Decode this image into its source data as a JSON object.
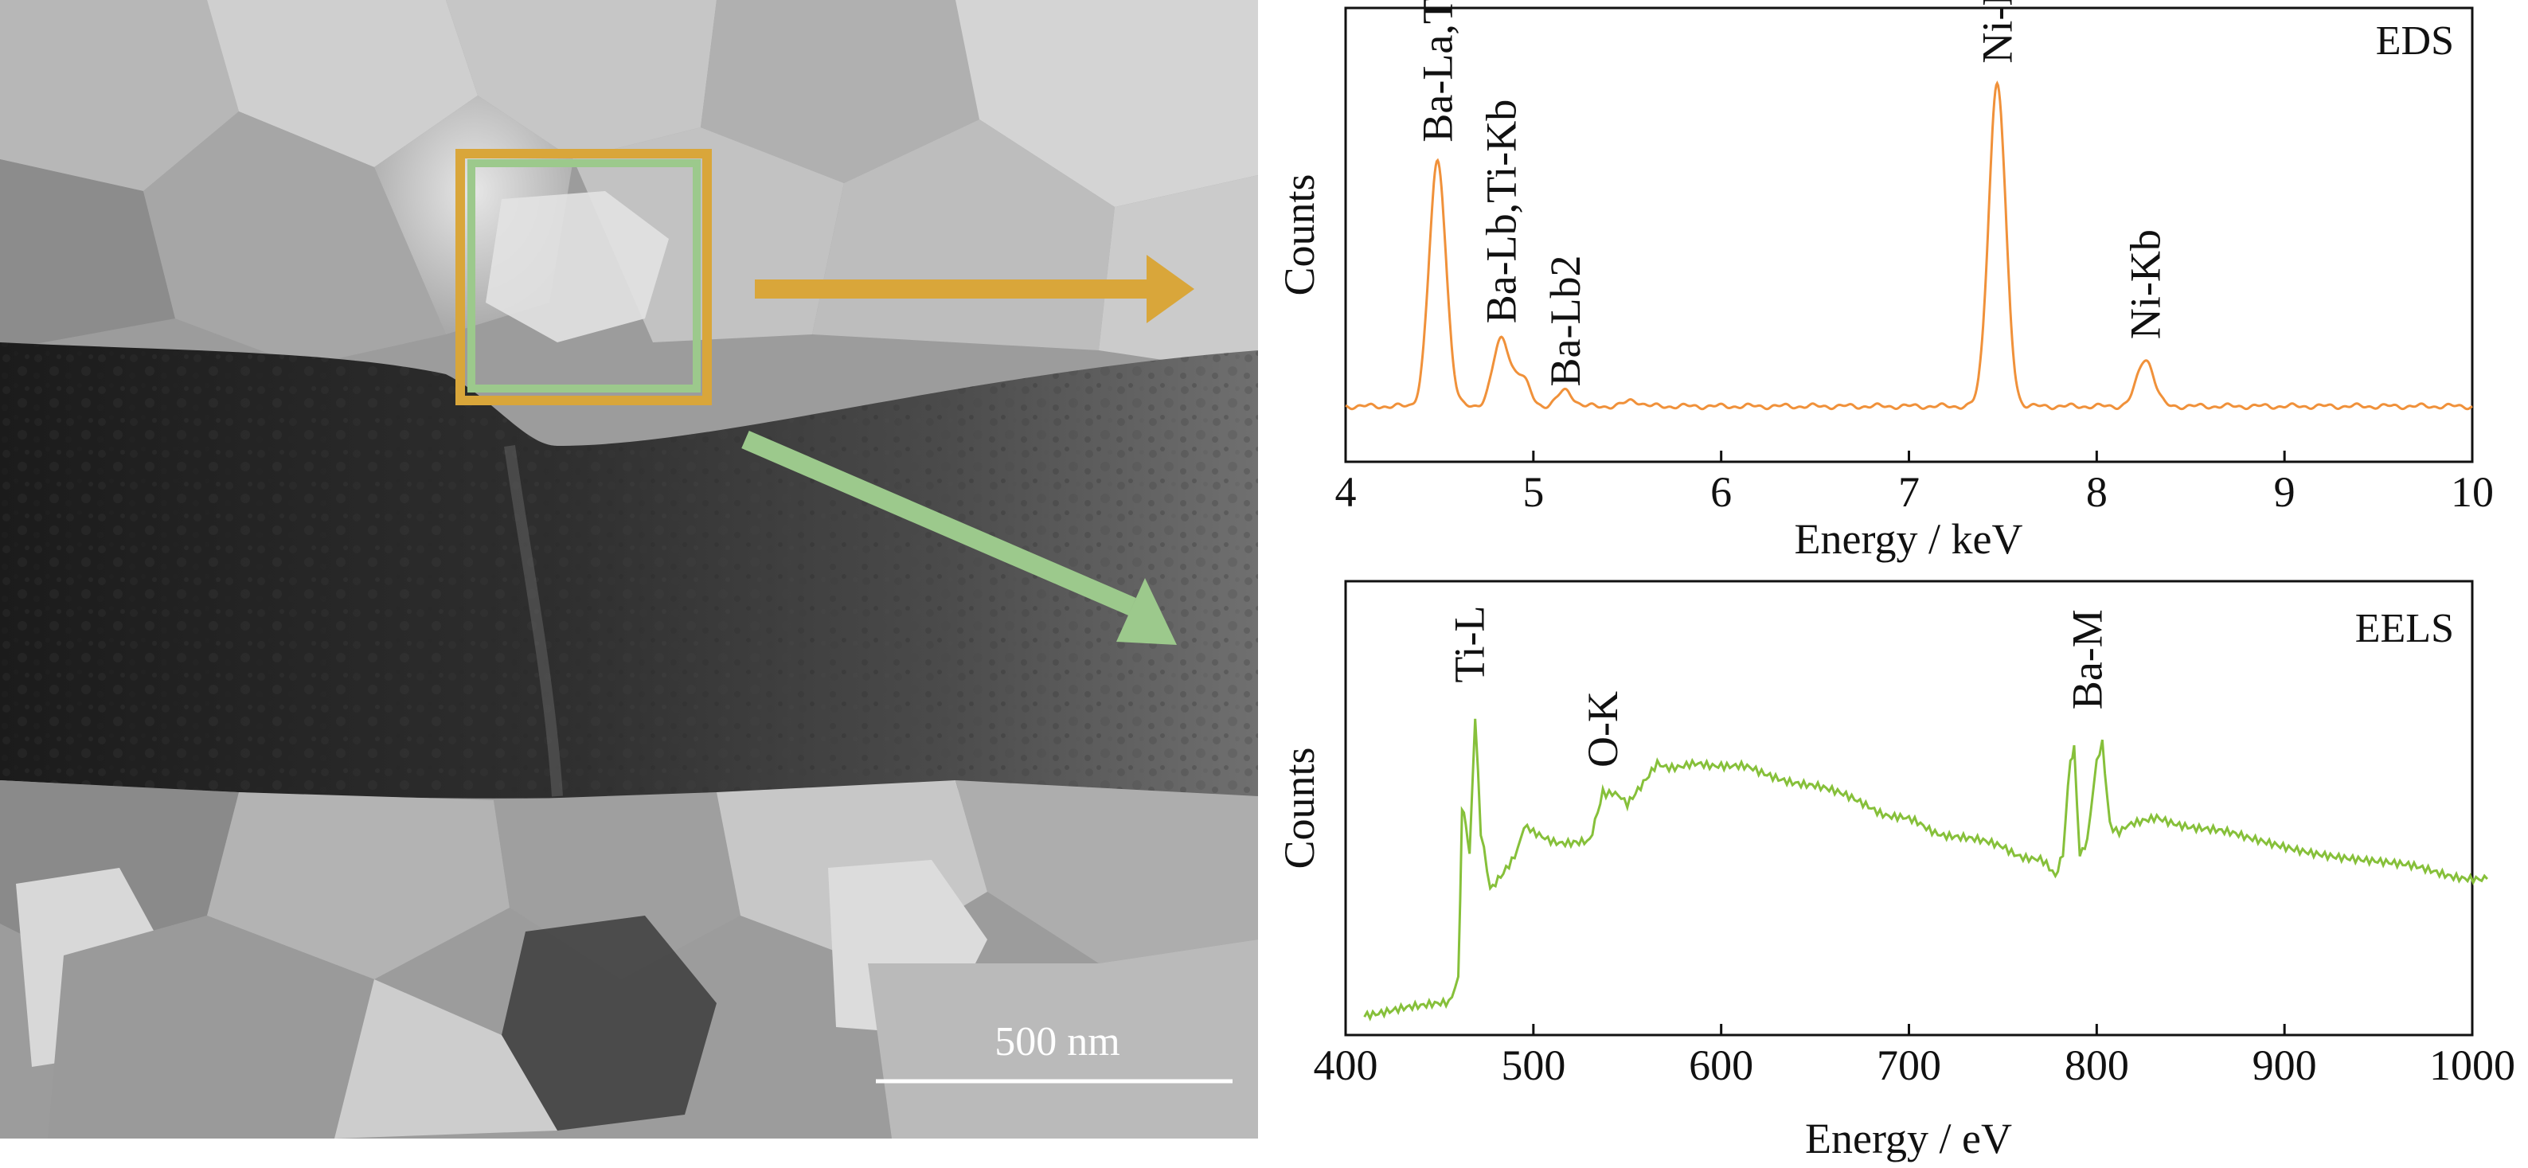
{
  "tem_panel": {
    "scale_bar_label": "500 nm",
    "box_colors": {
      "eds": "#D9A63A",
      "eels": "#9CC98C"
    },
    "arrow_colors": {
      "eds": "#D9A63A",
      "eels": "#9CC98C"
    }
  },
  "chart_data": [
    {
      "type": "line",
      "title": "EDS",
      "xlabel": "Energy / keV",
      "ylabel": "Counts",
      "xlim": [
        4,
        10
      ],
      "x_ticks": [
        "4",
        "5",
        "6",
        "7",
        "8",
        "9",
        "10"
      ],
      "y_ticks_visible": false,
      "color": "#F0913A",
      "baseline": 0.05,
      "peaks": [
        {
          "x": 4.49,
          "height": 0.62,
          "width": 0.045
        },
        {
          "x": 4.83,
          "height": 0.17,
          "width": 0.045
        },
        {
          "x": 4.94,
          "height": 0.07,
          "width": 0.04
        },
        {
          "x": 5.17,
          "height": 0.04,
          "width": 0.04
        },
        {
          "x": 5.53,
          "height": 0.015,
          "width": 0.04
        },
        {
          "x": 7.47,
          "height": 0.82,
          "width": 0.045
        },
        {
          "x": 8.26,
          "height": 0.12,
          "width": 0.045
        }
      ],
      "annotations": [
        {
          "label": "Ba-La,Ti-Ka",
          "x": 4.49,
          "y": 0.72
        },
        {
          "label": "Ba-Lb,Ti-Kb",
          "x": 4.83,
          "y": 0.26
        },
        {
          "label": "Ba-Lb2",
          "x": 5.17,
          "y": 0.1
        },
        {
          "label": "Ni-Ka",
          "x": 7.47,
          "y": 0.92
        },
        {
          "label": "Ni-Kb",
          "x": 8.26,
          "y": 0.22
        }
      ]
    },
    {
      "type": "line",
      "title": "EELS",
      "xlabel": "Energy / eV",
      "ylabel": "Counts",
      "xlim": [
        400,
        1000
      ],
      "x_ticks": [
        "400",
        "500",
        "600",
        "700",
        "800",
        "900",
        "1000"
      ],
      "y_ticks_visible": false,
      "color": "#86C03A",
      "points": [
        [
          410,
          0.05
        ],
        [
          440,
          0.06
        ],
        [
          455,
          0.075
        ],
        [
          460,
          0.13
        ],
        [
          462,
          0.5
        ],
        [
          464,
          0.48
        ],
        [
          466,
          0.4
        ],
        [
          469,
          0.71
        ],
        [
          472,
          0.45
        ],
        [
          477,
          0.33
        ],
        [
          484,
          0.36
        ],
        [
          490,
          0.4
        ],
        [
          495,
          0.47
        ],
        [
          500,
          0.45
        ],
        [
          520,
          0.43
        ],
        [
          530,
          0.44
        ],
        [
          537,
          0.55
        ],
        [
          542,
          0.54
        ],
        [
          550,
          0.52
        ],
        [
          560,
          0.57
        ],
        [
          566,
          0.61
        ],
        [
          580,
          0.6
        ],
        [
          600,
          0.61
        ],
        [
          620,
          0.59
        ],
        [
          650,
          0.56
        ],
        [
          680,
          0.51
        ],
        [
          700,
          0.48
        ],
        [
          720,
          0.45
        ],
        [
          750,
          0.42
        ],
        [
          770,
          0.39
        ],
        [
          778,
          0.36
        ],
        [
          782,
          0.4
        ],
        [
          786,
          0.62
        ],
        [
          788,
          0.64
        ],
        [
          791,
          0.4
        ],
        [
          795,
          0.43
        ],
        [
          800,
          0.62
        ],
        [
          803,
          0.66
        ],
        [
          807,
          0.47
        ],
        [
          812,
          0.46
        ],
        [
          820,
          0.47
        ],
        [
          832,
          0.49
        ],
        [
          850,
          0.47
        ],
        [
          880,
          0.44
        ],
        [
          920,
          0.41
        ],
        [
          960,
          0.38
        ],
        [
          990,
          0.36
        ],
        [
          1008,
          0.35
        ]
      ],
      "annotations": [
        {
          "label": "Ti-L",
          "x": 466,
          "y": 0.79
        },
        {
          "label": "O-K",
          "x": 537,
          "y": 0.6
        },
        {
          "label": "Ba-M",
          "x": 795,
          "y": 0.73
        }
      ]
    }
  ]
}
